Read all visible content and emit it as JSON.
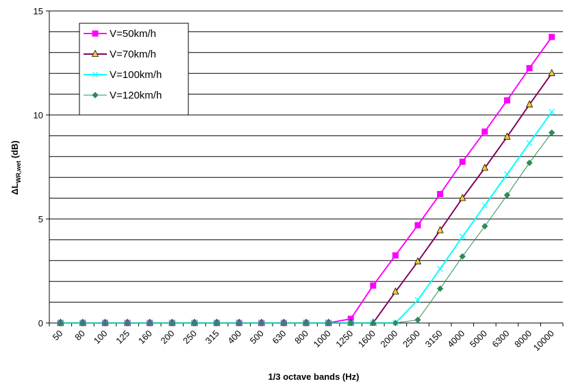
{
  "chart_data": {
    "type": "line",
    "categories": [
      "50",
      "80",
      "100",
      "125",
      "160",
      "200",
      "250",
      "315",
      "400",
      "500",
      "630",
      "800",
      "1000",
      "1250",
      "1600",
      "2000",
      "2500",
      "3150",
      "4000",
      "5000",
      "6300",
      "8000",
      "10000"
    ],
    "xlabel": "1/3 octave bands (Hz)",
    "ylabel_main": "ΔL",
    "ylabel_sub": "WR,wet",
    "ylabel_unit": " (dB)",
    "ylim": [
      0,
      15
    ],
    "yticks": [
      0,
      5,
      10,
      15
    ],
    "grid": true,
    "legend_position": "top-left",
    "series": [
      {
        "name": "V=50km/h",
        "color": "#ff00ff",
        "marker": "square",
        "values": [
          0,
          0,
          0,
          0,
          0,
          0,
          0,
          0,
          0,
          0,
          0,
          0,
          0,
          0.2,
          1.8,
          3.25,
          4.7,
          6.2,
          7.75,
          9.2,
          10.7,
          12.25,
          13.75
        ]
      },
      {
        "name": "V=70km/h",
        "color": "#800060",
        "marker": "triangle",
        "values": [
          0,
          0,
          0,
          0,
          0,
          0,
          0,
          0,
          0,
          0,
          0,
          0,
          0,
          0,
          0,
          1.5,
          2.95,
          4.45,
          6.0,
          7.45,
          8.95,
          10.5,
          12.0
        ]
      },
      {
        "name": "V=100km/h",
        "color": "#00ffff",
        "marker": "x",
        "values": [
          0,
          0,
          0,
          0,
          0,
          0,
          0,
          0,
          0,
          0,
          0,
          0,
          0,
          0,
          0,
          0,
          1.1,
          2.6,
          4.15,
          5.65,
          7.15,
          8.65,
          10.15
        ]
      },
      {
        "name": "V=120km/h",
        "color": "#2e8b57",
        "marker": "diamond",
        "values": [
          0,
          0,
          0,
          0,
          0,
          0,
          0,
          0,
          0,
          0,
          0,
          0,
          0,
          0,
          0,
          0,
          0.15,
          1.65,
          3.2,
          4.65,
          6.15,
          7.7,
          9.15
        ]
      }
    ]
  }
}
